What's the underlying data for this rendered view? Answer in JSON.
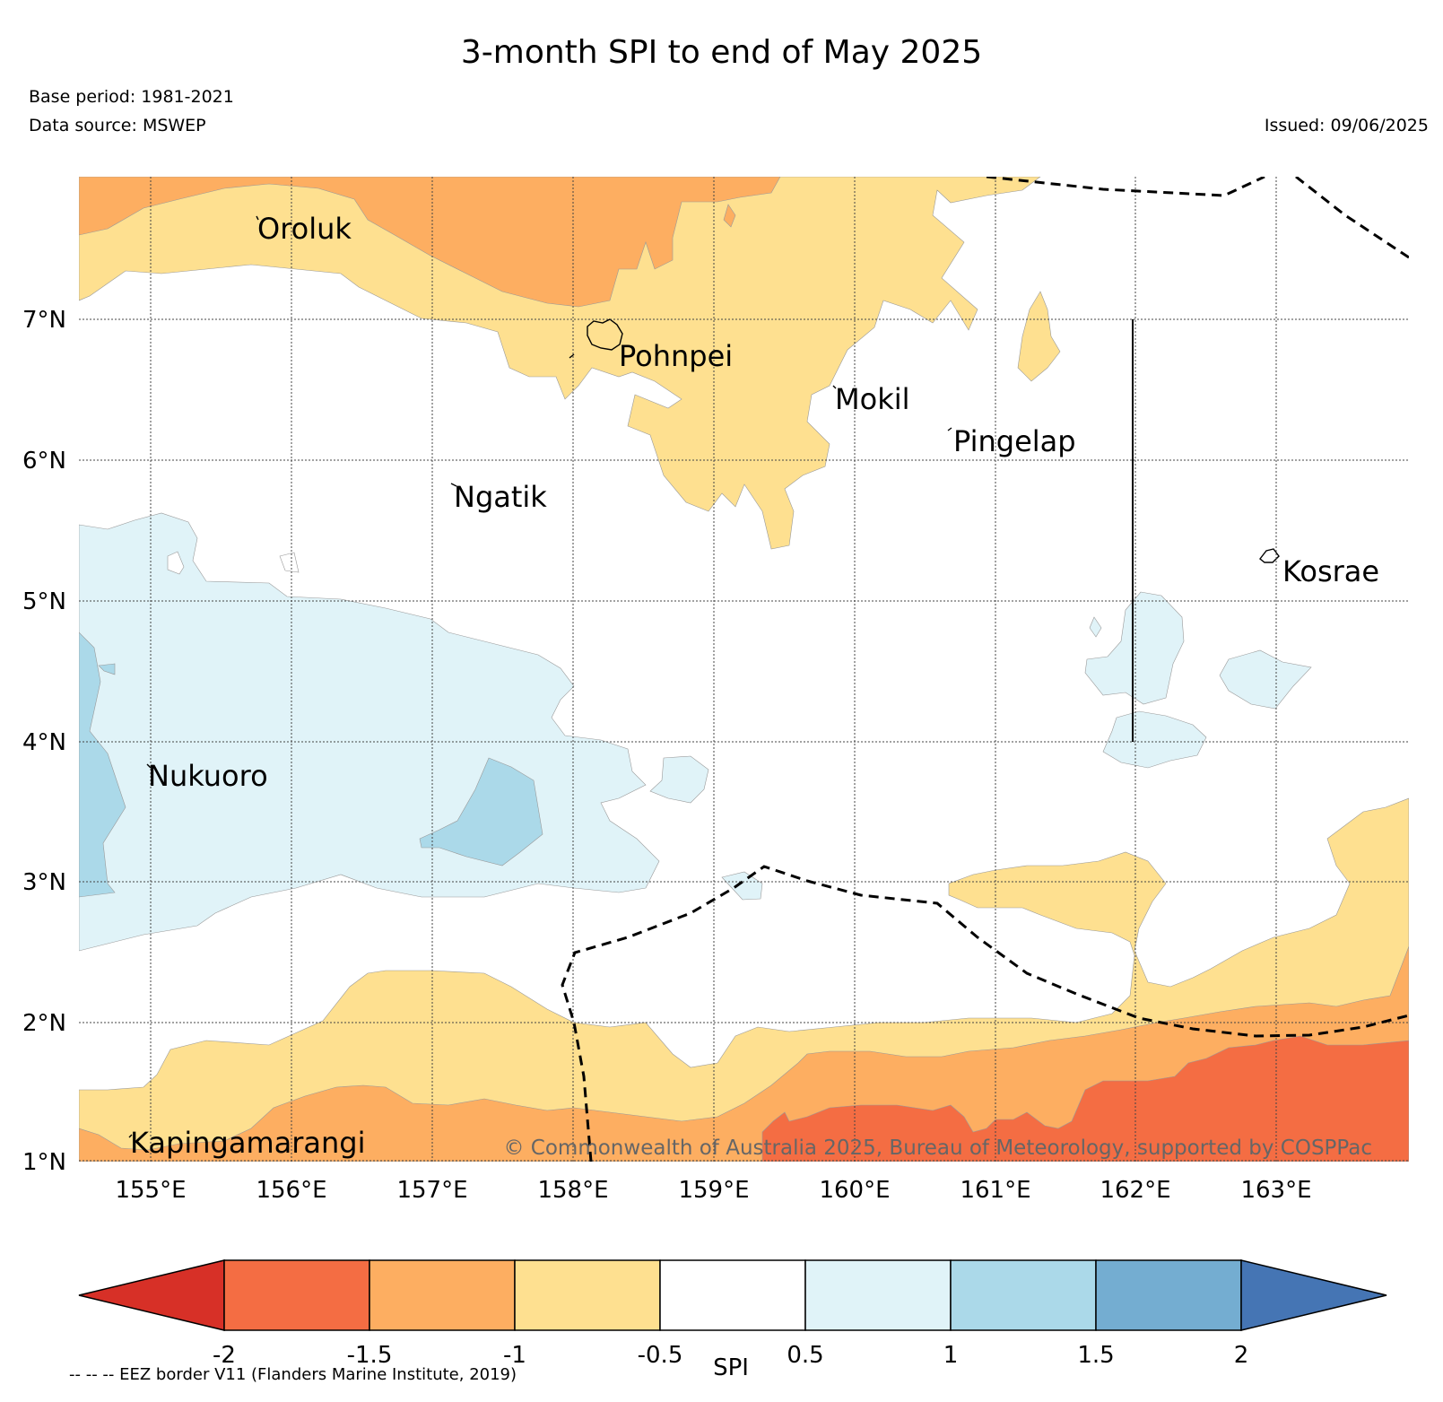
{
  "header": {
    "title": "3-month SPI to end of May 2025",
    "base_period": "Base period: 1981-2021",
    "data_source": "Data source: MSWEP",
    "issued": "Issued: 09/06/2025"
  },
  "map": {
    "region_lon_range": [
      154.5,
      164
    ],
    "region_lat_range": [
      1,
      8
    ],
    "lat_ticks": [
      "1°N",
      "2°N",
      "3°N",
      "4°N",
      "5°N",
      "6°N",
      "7°N"
    ],
    "lon_ticks": [
      "155°E",
      "156°E",
      "157°E",
      "158°E",
      "159°E",
      "160°E",
      "161°E",
      "162°E",
      "163°E"
    ],
    "places": {
      "oroluk": "Oroluk",
      "pohnpei": "Pohnpei",
      "mokil": "Mokil",
      "pingelap": "Pingelap",
      "ngatik": "Ngatik",
      "kosrae": "Kosrae",
      "nukuoro": "Nukuoro",
      "kapingamarangi": "Kapingamarangi"
    },
    "copyright": "© Commonwealth of Australia 2025, Bureau of Meteorology, supported by COSPPac",
    "colors": {
      "very_dry": "#d73027",
      "dry_-2_-1.5": "#f46d43",
      "dry_-1.5_-1": "#fdae61",
      "dry_-1_-0.5": "#fee090",
      "normal": "#ffffff",
      "wet_0.5_1": "#e0f3f8",
      "wet_1_1.5": "#abd9e9",
      "wet_1.5_2": "#74add1",
      "very_wet": "#4575b4"
    }
  },
  "colorbar": {
    "ticks": [
      "-2",
      "-1.5",
      "-1",
      "-0.5",
      "0.5",
      "1",
      "1.5",
      "2"
    ],
    "label": "SPI",
    "eez_note": "-- -- -- EEZ border V11 (Flanders Marine Institute, 2019)"
  }
}
